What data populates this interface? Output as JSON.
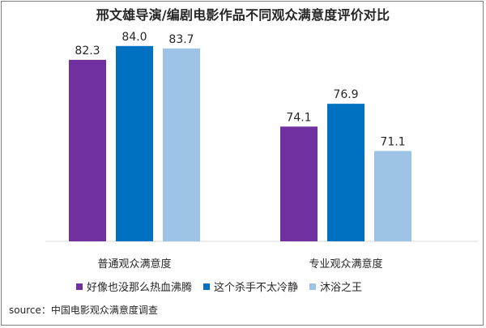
{
  "chart_data": {
    "type": "bar",
    "title": "邢文雄导演/编剧电影作品不同观众满意度评价对比",
    "categories": [
      "普通观众满意度",
      "专业观众满意度"
    ],
    "series": [
      {
        "name": "好像也没那么热血沸腾",
        "values": [
          82.3,
          74.1
        ],
        "color": "#7030a0"
      },
      {
        "name": "这个杀手不太冷静",
        "values": [
          84.0,
          76.9
        ],
        "color": "#0070c0"
      },
      {
        "name": "沐浴之王",
        "values": [
          83.7,
          71.1
        ],
        "color": "#9dc3e6"
      }
    ],
    "value_labels": [
      [
        "82.3",
        "74.1"
      ],
      [
        "84.0",
        "76.9"
      ],
      [
        "83.7",
        "71.1"
      ]
    ],
    "ylim": [
      60,
      86
    ],
    "legend_position": "bottom",
    "grid": false,
    "source": "source：中国电影观众满意度调查"
  }
}
